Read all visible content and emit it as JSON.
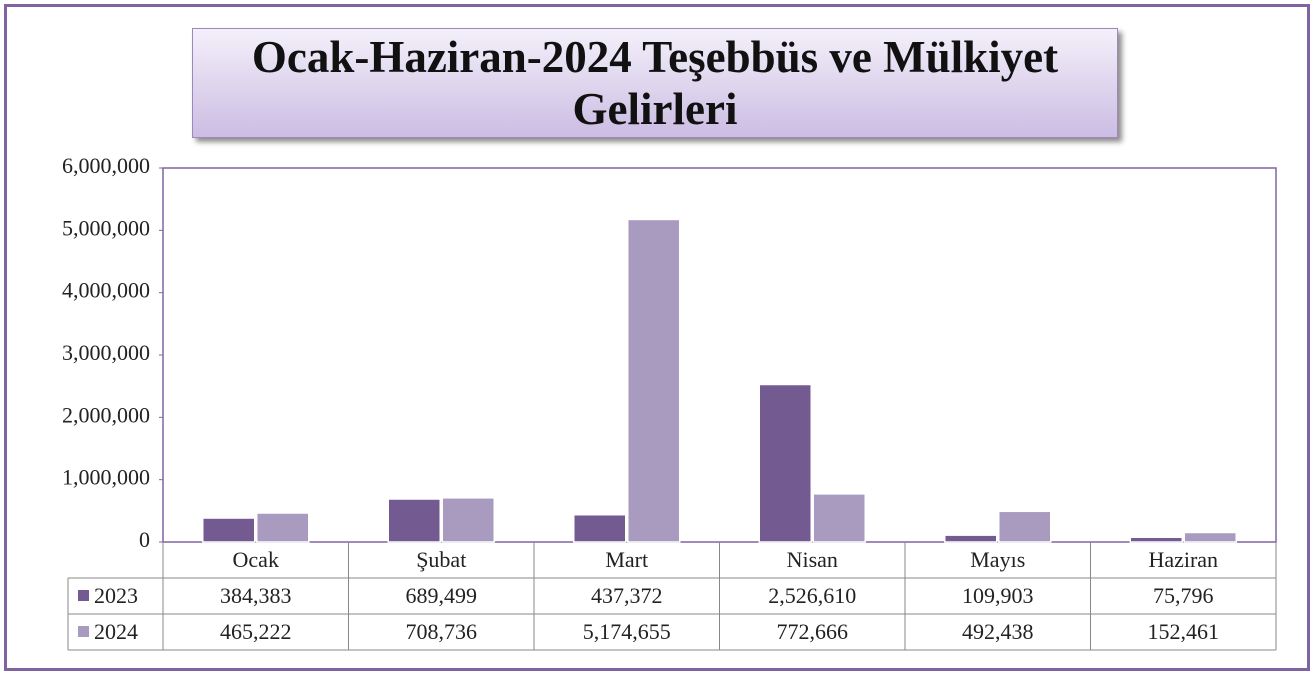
{
  "chart_data": {
    "type": "bar",
    "title": "Ocak-Haziran-2024 Teşebbüs ve Mülkiyet Gelirleri",
    "categories": [
      "Ocak",
      "Şubat",
      "Mart",
      "Nisan",
      "Mayıs",
      "Haziran"
    ],
    "series": [
      {
        "name": "2023",
        "color": "#735a91",
        "values": [
          384383,
          689499,
          437372,
          2526610,
          109903,
          75796
        ],
        "value_labels": [
          "384,383",
          "689,499",
          "437,372",
          "2,526,610",
          "109,903",
          "75,796"
        ]
      },
      {
        "name": "2024",
        "color": "#a99bc0",
        "values": [
          465222,
          708736,
          5174655,
          772666,
          492438,
          152461
        ],
        "value_labels": [
          "465,222",
          "708,736",
          "5,174,655",
          "772,666",
          "492,438",
          "152,461"
        ]
      }
    ],
    "ylim": [
      0,
      6000000
    ],
    "yticks": [
      0,
      {
        "value": 1000000,
        "label": "1,000,000"
      },
      {
        "value": 2000000,
        "label": "2,000,000"
      },
      {
        "value": 3000000,
        "label": "3,000,000"
      },
      {
        "value": 4000000,
        "label": "4,000,000"
      },
      {
        "value": 5000000,
        "label": "5,000,000"
      },
      {
        "value": 6000000,
        "label": "6,000,000"
      }
    ],
    "grid": false
  }
}
